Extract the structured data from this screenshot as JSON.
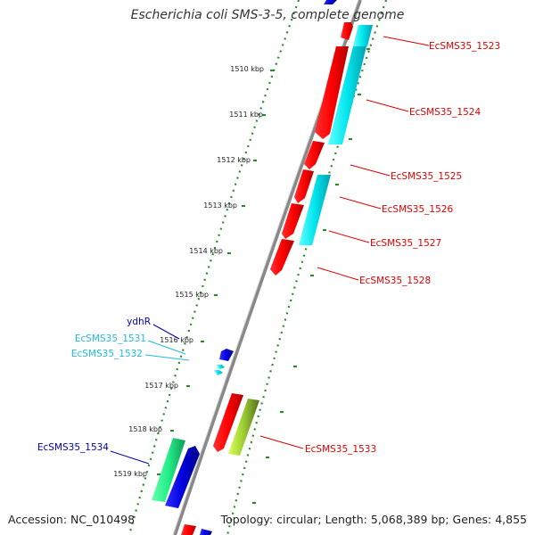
{
  "title": "Escherichia coli SMS-3-5, complete genome",
  "accession": "Accession: NC_010498",
  "summary": "Topology: circular; Length: 5,068,389 bp; Genes: 4,855",
  "colors": {
    "backbone": "#888888",
    "ruler": "#2a8a2a",
    "gene_red": "#ff0000",
    "gene_cyan": "#00e5ee",
    "gene_blue": "#0000cc",
    "gene_green": "#22ee88",
    "gene_olive": "#9acd32",
    "label_red": "#dd0000",
    "label_cyan": "#22bbdd",
    "label_blue": "#0000aa"
  },
  "ticks": [
    "1510 kbp",
    "1511 kbp",
    "1512 kbp",
    "1513 kbp",
    "1514 kbp",
    "1515 kbp",
    "1516 kbp",
    "1517 kbp",
    "1518 kbp",
    "1519 kbp"
  ],
  "gene_labels": [
    {
      "text": "EcSMS35_1523",
      "color": "red"
    },
    {
      "text": "EcSMS35_1524",
      "color": "red"
    },
    {
      "text": "EcSMS35_1525",
      "color": "red"
    },
    {
      "text": "EcSMS35_1526",
      "color": "red"
    },
    {
      "text": "EcSMS35_1527",
      "color": "red"
    },
    {
      "text": "EcSMS35_1528",
      "color": "red"
    },
    {
      "text": "ydhR",
      "color": "blue"
    },
    {
      "text": "EcSMS35_1531",
      "color": "cyan"
    },
    {
      "text": "EcSMS35_1532",
      "color": "cyan"
    },
    {
      "text": "EcSMS35_1533",
      "color": "red"
    },
    {
      "text": "EcSMS35_1534",
      "color": "blue"
    }
  ]
}
